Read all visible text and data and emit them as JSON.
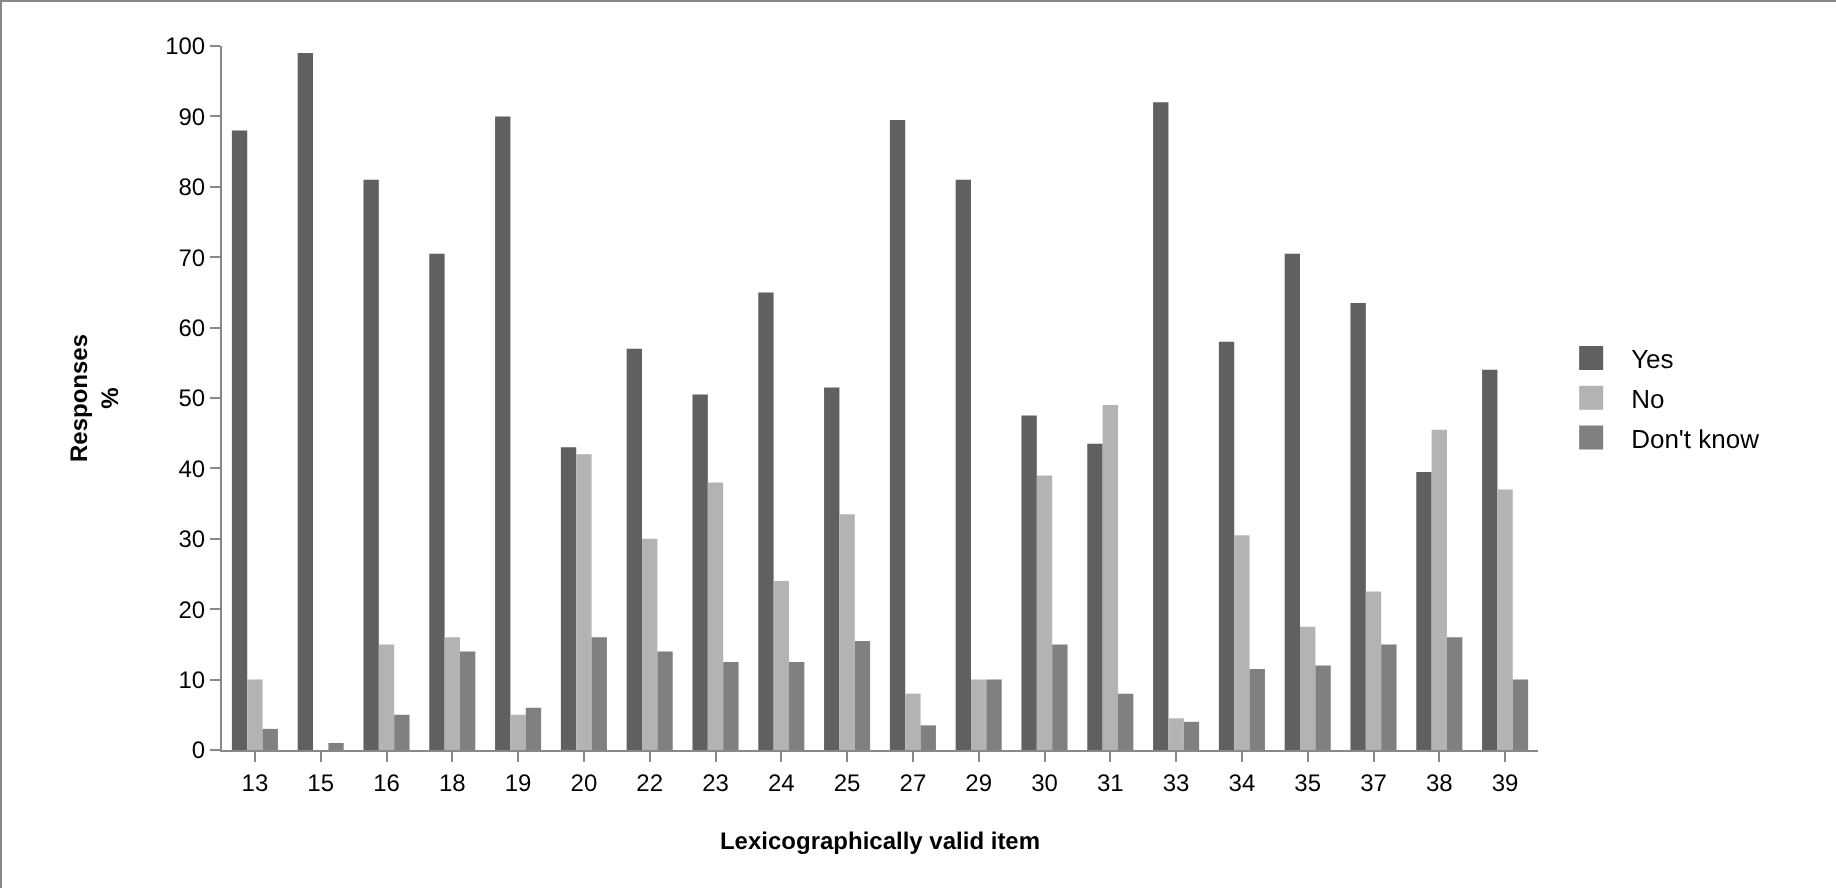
{
  "chart_data": {
    "type": "bar",
    "xlabel": "Lexicographically valid item",
    "ylabel": "Responses\n%",
    "categories": [
      "13",
      "15",
      "16",
      "18",
      "19",
      "20",
      "22",
      "23",
      "24",
      "25",
      "27",
      "29",
      "30",
      "31",
      "33",
      "34",
      "35",
      "37",
      "38",
      "39"
    ],
    "series": [
      {
        "name": "Yes",
        "color": "#606060",
        "values": [
          88,
          99,
          81,
          70.5,
          90,
          43,
          57,
          50.5,
          65,
          51.5,
          89.5,
          81,
          47.5,
          43.5,
          92,
          58,
          70.5,
          63.5,
          39.5,
          54
        ]
      },
      {
        "name": "No",
        "color": "#b3b3b3",
        "values": [
          10,
          0,
          15,
          16,
          5,
          42,
          30,
          38,
          24,
          33.5,
          8,
          10,
          39,
          49,
          4.5,
          30.5,
          17.5,
          22.5,
          45.5,
          37
        ]
      },
      {
        "name": "Don't know",
        "color": "#808080",
        "values": [
          3,
          1,
          5,
          14,
          6,
          16,
          14,
          12.5,
          12.5,
          15.5,
          3.5,
          10,
          15,
          8,
          4,
          11.5,
          12,
          15,
          16,
          10
        ]
      }
    ],
    "ylim": [
      0,
      100
    ],
    "yticks": [
      0,
      10,
      20,
      30,
      40,
      50,
      60,
      70,
      80,
      90,
      100
    ],
    "grid": false,
    "legend": "right"
  }
}
